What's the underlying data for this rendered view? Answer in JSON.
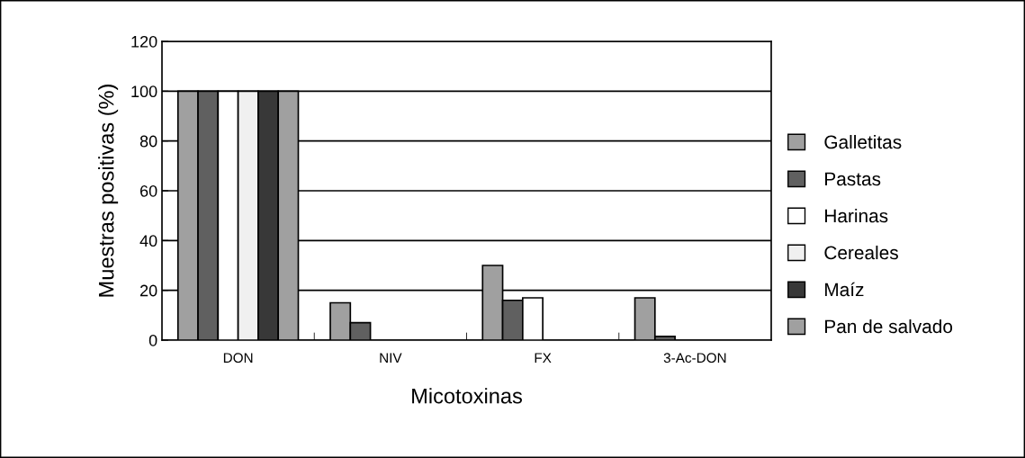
{
  "chart_data": {
    "type": "bar",
    "xlabel": "Micotoxinas",
    "ylabel": "Muestras positivas (%)",
    "categories": [
      "DON",
      "NIV",
      "FX",
      "3-Ac-DON"
    ],
    "series": [
      {
        "name": "Galletitas",
        "color": "#a0a0a0",
        "values": [
          100,
          15,
          30,
          17
        ]
      },
      {
        "name": "Pastas",
        "color": "#606060",
        "values": [
          100,
          7,
          16,
          1.5
        ]
      },
      {
        "name": "Harinas",
        "color": "#ffffff",
        "values": [
          100,
          0,
          17,
          0
        ]
      },
      {
        "name": "Cereales",
        "color": "#f0f0f0",
        "values": [
          100,
          0,
          0,
          0
        ]
      },
      {
        "name": "Maíz",
        "color": "#383838",
        "values": [
          100,
          0,
          0,
          0
        ]
      },
      {
        "name": "Pan de salvado",
        "color": "#a0a0a0",
        "values": [
          100,
          0,
          0,
          0
        ]
      }
    ],
    "ylim": [
      0,
      120
    ],
    "yticks": [
      0,
      20,
      40,
      60,
      80,
      100,
      120
    ],
    "grid": "y",
    "legend": "right"
  }
}
